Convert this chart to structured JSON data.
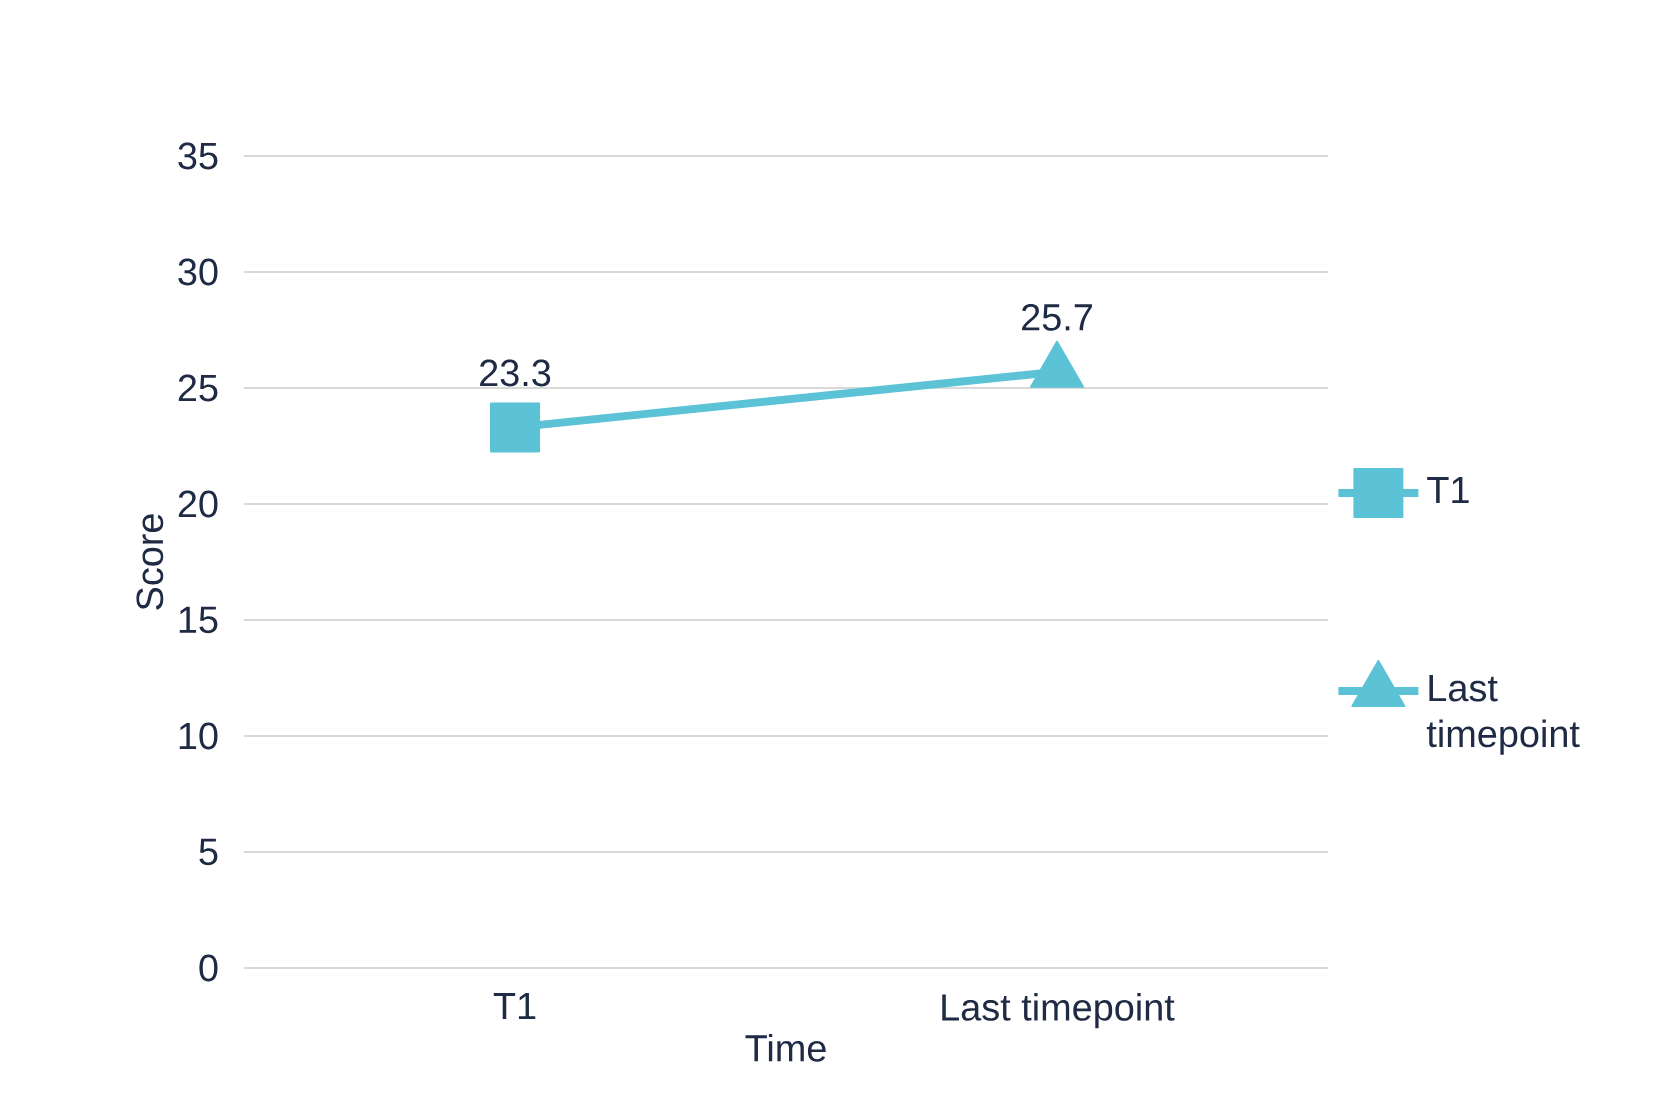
{
  "chart_data": {
    "type": "line",
    "xlabel": "Time",
    "ylabel": "Score",
    "categories": [
      "T1",
      "Last timepoint"
    ],
    "ylim": [
      0,
      35
    ],
    "yticks": [
      0,
      5,
      10,
      15,
      20,
      25,
      30,
      35
    ],
    "grid": "y",
    "legend": "right",
    "series": [
      {
        "color": "#5bc3d5",
        "values": [
          23.3,
          25.7
        ],
        "marker": "none"
      },
      {
        "name": "T1",
        "color": "#5bc3d5",
        "values": [
          23.3,
          null
        ],
        "marker": "square",
        "value_labels": [
          "23.3",
          null
        ]
      },
      {
        "name": "Last timepoint",
        "color": "#5bc3d5",
        "values": [
          null,
          25.7
        ],
        "marker": "triangle",
        "value_labels": [
          null,
          "25.7"
        ]
      }
    ]
  }
}
